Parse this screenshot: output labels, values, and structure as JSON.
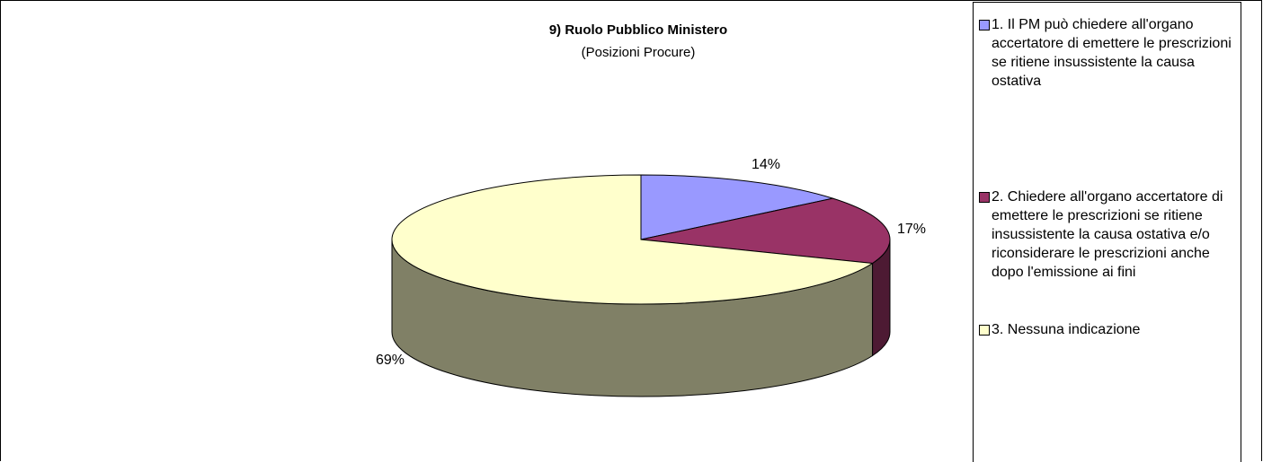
{
  "chart_data": {
    "type": "pie",
    "title": "9) Ruolo Pubblico Ministero",
    "subtitle": "(Posizioni Procure)",
    "categories": [
      "1. Il PM può chiedere all'organo accertatore di emettere le prescrizioni se ritiene insussistente la causa ostativa",
      "2. Chiedere all'organo accertatore di emettere le prescrizioni se ritiene insussistente la causa ostativa e/o riconsiderare le prescrizioni anche dopo l'emissione ai fini",
      "3. Nessuna indicazione"
    ],
    "values": [
      14,
      17,
      69
    ],
    "data_labels": [
      "14%",
      "17%",
      "69%"
    ],
    "colors": [
      "#9999ff",
      "#993366",
      "#ffffcc"
    ],
    "side_colors": [
      "#5c5c99",
      "#4d1a33",
      "#808066"
    ],
    "legend_position": "right",
    "three_d": true
  }
}
